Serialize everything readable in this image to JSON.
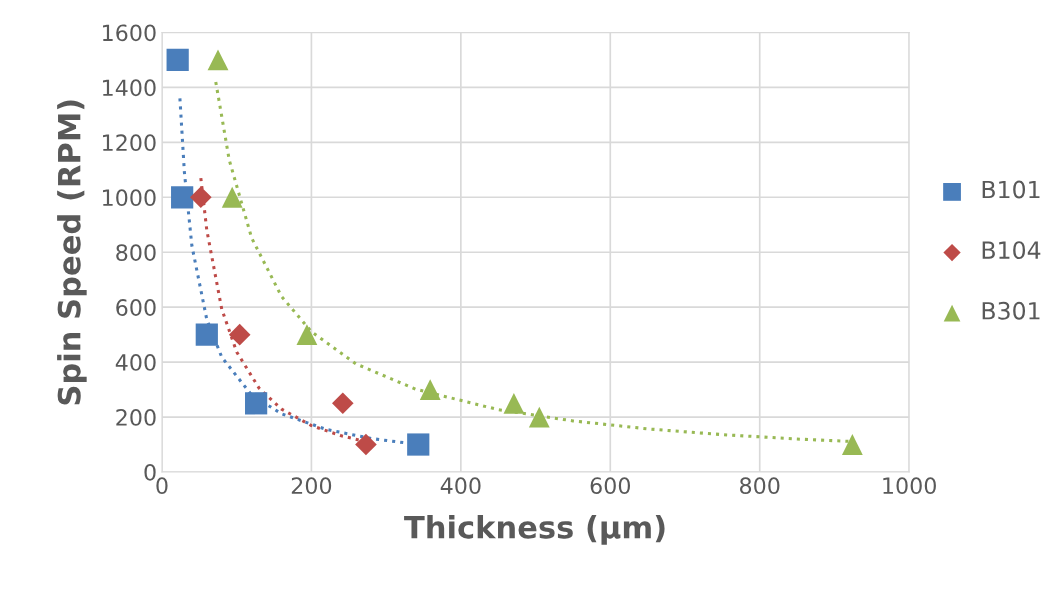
{
  "chart_data": {
    "type": "scatter",
    "xlabel": "Thickness (µm)",
    "ylabel": "Spin Speed (RPM)",
    "xlim": [
      0,
      1000
    ],
    "xticks": [
      0,
      200,
      400,
      600,
      800,
      1000
    ],
    "ylim": [
      0,
      1600
    ],
    "yticks": [
      0,
      200,
      400,
      600,
      800,
      1000,
      1200,
      1400,
      1600
    ],
    "grid": true,
    "legend": "right",
    "series": [
      {
        "name": "B101",
        "color": "#4a7ebb",
        "marker": "square",
        "x": [
          21,
          27,
          60,
          126,
          343
        ],
        "values": [
          1500,
          1000,
          500,
          250,
          100
        ]
      },
      {
        "name": "B104",
        "color": "#be4b48",
        "marker": "diamond",
        "x": [
          52,
          104,
          242,
          273
        ],
        "values": [
          1000,
          500,
          250,
          100
        ]
      },
      {
        "name": "B301",
        "color": "#98b954",
        "marker": "triangle",
        "x": [
          75,
          94,
          194,
          359,
          471,
          505,
          924
        ],
        "values": [
          1500,
          1000,
          500,
          300,
          250,
          200,
          100
        ]
      },
      {
        "type": "line",
        "color": "#4a7ebb",
        "line_style": "dotted",
        "marker": "none",
        "x": [
          24,
          30,
          40,
          60,
          80,
          120,
          160,
          220,
          280,
          343
        ],
        "values": [
          1360,
          1091,
          824,
          555,
          418,
          280,
          212,
          155,
          122,
          100
        ]
      },
      {
        "type": "line",
        "color": "#be4b48",
        "line_style": "dotted",
        "marker": "none",
        "x": [
          52,
          60,
          80,
          100,
          130,
          160,
          200,
          240,
          273
        ],
        "values": [
          1070,
          880,
          593,
          437,
          305,
          229,
          169,
          132,
          110
        ]
      },
      {
        "type": "line",
        "color": "#98b954",
        "line_style": "dotted",
        "marker": "none",
        "x": [
          72,
          90,
          120,
          160,
          200,
          260,
          340,
          450,
          550,
          650,
          750,
          850,
          924
        ],
        "values": [
          1420,
          1136,
          852,
          639,
          511,
          393,
          301,
          227,
          186,
          157,
          136,
          120,
          111
        ]
      }
    ]
  }
}
